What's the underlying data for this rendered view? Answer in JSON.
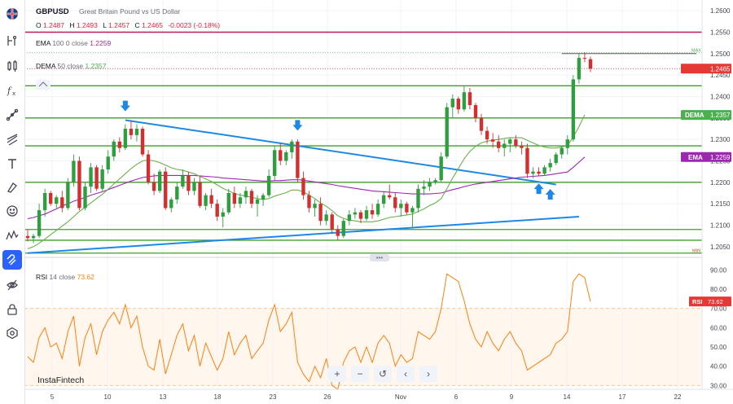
{
  "header": {
    "symbol": "GBPUSD",
    "description": "Great Britain Pound vs US Dollar",
    "ohlc": {
      "o_label": "O",
      "o": "1.2487",
      "h_label": "H",
      "h": "1.2493",
      "l_label": "L",
      "l": "1.2457",
      "c_label": "C",
      "c": "1.2465",
      "change": "-0.0023 (-0.18%)"
    }
  },
  "indicators": {
    "ema": {
      "name": "EMA",
      "params": "100 0 close",
      "value": "1.2259"
    },
    "dema": {
      "name": "DEMA",
      "params": "50 close",
      "value": "1.2357"
    },
    "rsi": {
      "name": "RSI",
      "params": "14 close",
      "value": "73.62"
    }
  },
  "price_axis": {
    "ticks": [
      "1.2600",
      "1.2550",
      "1.2500",
      "1.2450",
      "1.2400",
      "1.2350",
      "1.2300",
      "1.2250",
      "1.2200",
      "1.2150",
      "1.2100",
      "1.2050"
    ],
    "labels": {
      "current": "1.2465",
      "dema_tag": "DEMA",
      "dema": "1.2357",
      "ema_tag": "EMA",
      "ema": "1.2259",
      "max": "MAX",
      "min": "MIN"
    }
  },
  "rsi_axis": {
    "ticks": [
      "90.00",
      "80.00",
      "70.00",
      "60.00",
      "50.00",
      "40.00",
      "30.00"
    ],
    "tag": "RSI",
    "value": "73.62"
  },
  "time_axis": {
    "ticks": [
      "5",
      "10",
      "13",
      "18",
      "23",
      "26",
      "Nov",
      "6",
      "9",
      "14",
      "17",
      "22"
    ]
  },
  "branding": "InstaFintech",
  "colors": {
    "up": "#2e9e3e",
    "down": "#d32f2f",
    "ema": "#9c27b0",
    "dema": "#6ab04c",
    "rsi": "#ff7f0e",
    "level": "#3f9e2a",
    "trend": "#1e88e5",
    "resistance": "#c2185b"
  },
  "toolbar_icons": [
    "flag-icon",
    "indicator-icon",
    "candles-icon",
    "fx-icon",
    "draw-icon",
    "trendline-icon",
    "text-icon",
    "brush-icon",
    "emoji-icon",
    "pattern-icon",
    "magnet-icon",
    "hide-icon",
    "lock-icon",
    "settings-icon"
  ],
  "chart_data": {
    "type": "candlestick",
    "ylim": [
      1.2025,
      1.2625
    ],
    "rsi_ylim": [
      28,
      94
    ],
    "horizontal_levels": [
      1.2425,
      1.235,
      1.2285,
      1.22,
      1.209,
      1.2065,
      1.2035
    ],
    "resistance_level": 1.255,
    "max_level": 1.2503,
    "current_price": 1.2465,
    "trendlines": [
      {
        "from": [
          17,
          1.2345
        ],
        "to": [
          92,
          1.2195
        ]
      },
      {
        "from": [
          0,
          1.2035
        ],
        "to": [
          96,
          1.212
        ]
      }
    ],
    "arrows_down": [
      [
        17,
        1.2375
      ],
      [
        47,
        1.233
      ]
    ],
    "arrows_up": [
      [
        89,
        1.2188
      ],
      [
        91,
        1.2175
      ]
    ],
    "candles": [
      [
        1.2075,
        1.209,
        1.2062,
        1.207
      ],
      [
        1.207,
        1.208,
        1.2058,
        1.2075
      ],
      [
        1.2075,
        1.215,
        1.207,
        1.2135
      ],
      [
        1.2135,
        1.2185,
        1.212,
        1.2175
      ],
      [
        1.2175,
        1.218,
        1.2145,
        1.215
      ],
      [
        1.215,
        1.217,
        1.214,
        1.2165
      ],
      [
        1.2165,
        1.218,
        1.213,
        1.214
      ],
      [
        1.214,
        1.221,
        1.2135,
        1.22
      ],
      [
        1.22,
        1.2265,
        1.219,
        1.225
      ],
      [
        1.225,
        1.226,
        1.2135,
        1.214
      ],
      [
        1.214,
        1.22,
        1.2135,
        1.219
      ],
      [
        1.219,
        1.2245,
        1.2175,
        1.2235
      ],
      [
        1.2235,
        1.224,
        1.218,
        1.2185
      ],
      [
        1.2185,
        1.224,
        1.218,
        1.223
      ],
      [
        1.223,
        1.2275,
        1.222,
        1.226
      ],
      [
        1.226,
        1.23,
        1.225,
        1.2295
      ],
      [
        1.2295,
        1.2305,
        1.227,
        1.228
      ],
      [
        1.228,
        1.2335,
        1.2275,
        1.2325
      ],
      [
        1.2325,
        1.2345,
        1.23,
        1.231
      ],
      [
        1.231,
        1.2335,
        1.2295,
        1.2325
      ],
      [
        1.2325,
        1.233,
        1.226,
        1.2265
      ],
      [
        1.2265,
        1.2275,
        1.2195,
        1.22
      ],
      [
        1.22,
        1.222,
        1.217,
        1.218
      ],
      [
        1.218,
        1.223,
        1.2175,
        1.2225
      ],
      [
        1.2225,
        1.2235,
        1.2135,
        1.214
      ],
      [
        1.214,
        1.2165,
        1.213,
        1.216
      ],
      [
        1.216,
        1.22,
        1.215,
        1.219
      ],
      [
        1.219,
        1.223,
        1.2185,
        1.2215
      ],
      [
        1.2215,
        1.2225,
        1.217,
        1.218
      ],
      [
        1.218,
        1.221,
        1.217,
        1.22
      ],
      [
        1.22,
        1.2215,
        1.214,
        1.2145
      ],
      [
        1.2145,
        1.2175,
        1.2135,
        1.217
      ],
      [
        1.217,
        1.2185,
        1.214,
        1.215
      ],
      [
        1.215,
        1.216,
        1.211,
        1.212
      ],
      [
        1.212,
        1.214,
        1.2095,
        1.213
      ],
      [
        1.213,
        1.2185,
        1.2125,
        1.2175
      ],
      [
        1.2175,
        1.219,
        1.214,
        1.215
      ],
      [
        1.215,
        1.2175,
        1.214,
        1.2165
      ],
      [
        1.2165,
        1.219,
        1.215,
        1.218
      ],
      [
        1.218,
        1.2185,
        1.214,
        1.215
      ],
      [
        1.215,
        1.217,
        1.212,
        1.216
      ],
      [
        1.216,
        1.2175,
        1.2145,
        1.217
      ],
      [
        1.217,
        1.223,
        1.2165,
        1.2215
      ],
      [
        1.2215,
        1.2285,
        1.2205,
        1.2275
      ],
      [
        1.2275,
        1.229,
        1.224,
        1.225
      ],
      [
        1.225,
        1.2275,
        1.224,
        1.227
      ],
      [
        1.227,
        1.23,
        1.2255,
        1.2295
      ],
      [
        1.2295,
        1.23,
        1.22,
        1.221
      ],
      [
        1.221,
        1.2225,
        1.216,
        1.217
      ],
      [
        1.217,
        1.218,
        1.213,
        1.214
      ],
      [
        1.214,
        1.216,
        1.212,
        1.215
      ],
      [
        1.215,
        1.2165,
        1.21,
        1.211
      ],
      [
        1.211,
        1.2135,
        1.21,
        1.2125
      ],
      [
        1.2125,
        1.213,
        1.208,
        1.209
      ],
      [
        1.209,
        1.21,
        1.2065,
        1.2075
      ],
      [
        1.2075,
        1.2115,
        1.207,
        1.211
      ],
      [
        1.211,
        1.2135,
        1.21,
        1.2125
      ],
      [
        1.2125,
        1.214,
        1.2115,
        1.213
      ],
      [
        1.213,
        1.2135,
        1.2105,
        1.2115
      ],
      [
        1.2115,
        1.2145,
        1.211,
        1.2135
      ],
      [
        1.2135,
        1.215,
        1.2115,
        1.2125
      ],
      [
        1.2125,
        1.216,
        1.212,
        1.215
      ],
      [
        1.215,
        1.218,
        1.214,
        1.217
      ],
      [
        1.217,
        1.2195,
        1.216,
        1.2165
      ],
      [
        1.2165,
        1.2175,
        1.213,
        1.214
      ],
      [
        1.214,
        1.216,
        1.212,
        1.215
      ],
      [
        1.215,
        1.2155,
        1.2125,
        1.213
      ],
      [
        1.213,
        1.2145,
        1.2095,
        1.214
      ],
      [
        1.214,
        1.2195,
        1.213,
        1.2185
      ],
      [
        1.2185,
        1.2205,
        1.217,
        1.219
      ],
      [
        1.219,
        1.221,
        1.218,
        1.22
      ],
      [
        1.22,
        1.221,
        1.2195,
        1.2205
      ],
      [
        1.2205,
        1.227,
        1.22,
        1.226
      ],
      [
        1.226,
        1.2385,
        1.2255,
        1.2375
      ],
      [
        1.2375,
        1.2405,
        1.235,
        1.2395
      ],
      [
        1.2395,
        1.24,
        1.236,
        1.237
      ],
      [
        1.237,
        1.2425,
        1.2365,
        1.241
      ],
      [
        1.241,
        1.242,
        1.237,
        1.238
      ],
      [
        1.238,
        1.2385,
        1.234,
        1.235
      ],
      [
        1.235,
        1.236,
        1.231,
        1.232
      ],
      [
        1.232,
        1.233,
        1.229,
        1.23
      ],
      [
        1.23,
        1.2315,
        1.228,
        1.2295
      ],
      [
        1.2295,
        1.231,
        1.227,
        1.228
      ],
      [
        1.228,
        1.23,
        1.226,
        1.229
      ],
      [
        1.229,
        1.2305,
        1.227,
        1.23
      ],
      [
        1.23,
        1.231,
        1.228,
        1.2285
      ],
      [
        1.2285,
        1.2295,
        1.2265,
        1.228
      ],
      [
        1.228,
        1.229,
        1.221,
        1.222
      ],
      [
        1.222,
        1.2235,
        1.221,
        1.2225
      ],
      [
        1.2225,
        1.2235,
        1.2215,
        1.222
      ],
      [
        1.222,
        1.224,
        1.2215,
        1.2235
      ],
      [
        1.2235,
        1.2255,
        1.2225,
        1.2245
      ],
      [
        1.2245,
        1.227,
        1.224,
        1.2265
      ],
      [
        1.2265,
        1.2285,
        1.2255,
        1.228
      ],
      [
        1.228,
        1.231,
        1.2265,
        1.23
      ],
      [
        1.23,
        1.245,
        1.2295,
        1.244
      ],
      [
        1.244,
        1.25,
        1.243,
        1.249
      ],
      [
        1.249,
        1.2503,
        1.248,
        1.2488
      ],
      [
        1.2487,
        1.2493,
        1.2457,
        1.2465
      ]
    ],
    "ema_line": [
      1.2115,
      1.2118,
      1.2122,
      1.2126,
      1.2132,
      1.2138,
      1.2145,
      1.215,
      1.2156,
      1.216,
      1.2165,
      1.217,
      1.2174,
      1.2178,
      1.2183,
      1.2188,
      1.2193,
      1.2198,
      1.2203,
      1.2207,
      1.2211,
      1.2213,
      1.2215,
      1.2216,
      1.2216,
      1.2216,
      1.2216,
      1.2216,
      1.2216,
      1.2216,
      1.2215,
      1.2214,
      1.2213,
      1.2212,
      1.221,
      1.2209,
      1.2208,
      1.2207,
      1.2206,
      1.2205,
      1.2204,
      1.2203,
      1.2203,
      1.2204,
      1.2204,
      1.2205,
      1.2206,
      1.2206,
      1.2205,
      1.2203,
      1.2201,
      1.2199,
      1.2197,
      1.2195,
      1.2192,
      1.219,
      1.2188,
      1.2186,
      1.2184,
      1.2182,
      1.218,
      1.2179,
      1.2178,
      1.2177,
      1.2176,
      1.2175,
      1.2174,
      1.2173,
      1.2173,
      1.2173,
      1.2173,
      1.2174,
      1.2175,
      1.2179,
      1.2183,
      1.2186,
      1.219,
      1.2193,
      1.2196,
      1.2198,
      1.22,
      1.2202,
      1.2204,
      1.2206,
      1.2208,
      1.221,
      1.2212,
      1.2213,
      1.2214,
      1.2215,
      1.2216,
      1.2218,
      1.222,
      1.2222,
      1.2224,
      1.2235,
      1.2247,
      1.2259
    ],
    "dema_line": [
      1.2045,
      1.205,
      1.2058,
      1.2068,
      1.2078,
      1.2088,
      1.2098,
      1.2108,
      1.212,
      1.2132,
      1.2142,
      1.2152,
      1.2162,
      1.2172,
      1.2184,
      1.2196,
      1.2208,
      1.222,
      1.2232,
      1.2242,
      1.225,
      1.2252,
      1.225,
      1.2246,
      1.224,
      1.2234,
      1.223,
      1.2228,
      1.2224,
      1.222,
      1.2214,
      1.2208,
      1.2202,
      1.2194,
      1.2186,
      1.218,
      1.2174,
      1.217,
      1.2168,
      1.2165,
      1.2162,
      1.216,
      1.2162,
      1.2168,
      1.2172,
      1.2176,
      1.2182,
      1.2182,
      1.2178,
      1.217,
      1.2162,
      1.2152,
      1.2144,
      1.2134,
      1.2122,
      1.2116,
      1.2112,
      1.211,
      1.2108,
      1.2108,
      1.2108,
      1.211,
      1.2114,
      1.2118,
      1.212,
      1.2122,
      1.2124,
      1.2126,
      1.2132,
      1.2138,
      1.2146,
      1.2152,
      1.2162,
      1.2185,
      1.221,
      1.2232,
      1.2255,
      1.2272,
      1.2284,
      1.2292,
      1.2296,
      1.2298,
      1.23,
      1.2302,
      1.2304,
      1.2304,
      1.2304,
      1.2298,
      1.2292,
      1.2286,
      1.2282,
      1.228,
      1.228,
      1.2282,
      1.2286,
      1.2305,
      1.233,
      1.2357
    ],
    "rsi": [
      45,
      42,
      55,
      60,
      50,
      52,
      44,
      58,
      66,
      40,
      55,
      62,
      46,
      58,
      64,
      68,
      62,
      72,
      60,
      66,
      50,
      40,
      38,
      54,
      36,
      46,
      56,
      62,
      48,
      56,
      40,
      52,
      45,
      38,
      44,
      58,
      46,
      52,
      56,
      44,
      48,
      52,
      64,
      72,
      58,
      62,
      68,
      42,
      36,
      32,
      40,
      34,
      44,
      30,
      28,
      42,
      48,
      50,
      42,
      50,
      42,
      52,
      56,
      52,
      40,
      46,
      42,
      44,
      58,
      56,
      54,
      58,
      70,
      88,
      86,
      84,
      74,
      62,
      54,
      50,
      58,
      52,
      48,
      54,
      58,
      52,
      48,
      38,
      40,
      42,
      44,
      46,
      52,
      54,
      58,
      84,
      88,
      86,
      73.62
    ]
  }
}
